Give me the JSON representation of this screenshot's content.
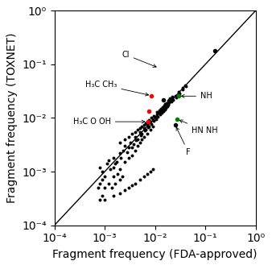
{
  "chart_data": {
    "type": "scatter",
    "log": true,
    "xlabel": "Fragment frequency (FDA-approved)",
    "ylabel": "Fragment frequency (TOXNET)",
    "xlim": [
      0.0001,
      1.0
    ],
    "ylim": [
      0.0001,
      1.0
    ],
    "xticks": [
      {
        "value": 0.0001,
        "label": "10⁻⁴"
      },
      {
        "value": 0.001,
        "label": "10⁻³"
      },
      {
        "value": 0.01,
        "label": "10⁻²"
      },
      {
        "value": 0.1,
        "label": "10⁻¹"
      },
      {
        "value": 1.0,
        "label": "10⁰"
      }
    ],
    "yticks": [
      {
        "value": 0.0001,
        "label": "10⁻⁴"
      },
      {
        "value": 0.001,
        "label": "10⁻³"
      },
      {
        "value": 0.01,
        "label": "10⁻²"
      },
      {
        "value": 0.1,
        "label": "10⁻¹"
      },
      {
        "value": 1.0,
        "label": "10⁰"
      }
    ],
    "series": [
      {
        "type": "line",
        "color": "black",
        "points": [
          [
            0.0001,
            0.0001
          ],
          [
            1.0,
            1.0
          ]
        ]
      },
      {
        "type": "scatter",
        "color": "black",
        "points": [
          [
            0.00075,
            0.0005
          ],
          [
            0.0008,
            0.0006
          ],
          [
            0.0009,
            0.0007
          ],
          [
            0.001,
            0.0008
          ],
          [
            0.0008,
            0.0012
          ],
          [
            0.0009,
            0.001
          ],
          [
            0.0011,
            0.0014
          ],
          [
            0.0012,
            0.0016
          ],
          [
            0.0013,
            0.0011
          ],
          [
            0.0015,
            0.0018
          ],
          [
            0.0015,
            0.0012
          ],
          [
            0.0016,
            0.0014
          ],
          [
            0.0017,
            0.0015
          ],
          [
            0.002,
            0.0022
          ],
          [
            0.0021,
            0.0018
          ],
          [
            0.0023,
            0.0025
          ],
          [
            0.0025,
            0.003
          ],
          [
            0.0028,
            0.0023
          ],
          [
            0.003,
            0.0028
          ],
          [
            0.0032,
            0.0035
          ],
          [
            0.0035,
            0.0028
          ],
          [
            0.0038,
            0.0032
          ],
          [
            0.004,
            0.0045
          ],
          [
            0.0042,
            0.0038
          ],
          [
            0.0045,
            0.004
          ],
          [
            0.005,
            0.0055
          ],
          [
            0.0052,
            0.0048
          ],
          [
            0.0055,
            0.005
          ],
          [
            0.006,
            0.0065
          ],
          [
            0.0063,
            0.0058
          ],
          [
            0.0065,
            0.006
          ],
          [
            0.007,
            0.0075
          ],
          [
            0.0072,
            0.0068
          ],
          [
            0.0075,
            0.007
          ],
          [
            0.008,
            0.0085
          ],
          [
            0.0083,
            0.0078
          ],
          [
            0.009,
            0.0095
          ],
          [
            0.0093,
            0.0088
          ],
          [
            0.01,
            0.0105
          ],
          [
            0.0105,
            0.0095
          ],
          [
            0.011,
            0.0115
          ],
          [
            0.0115,
            0.0105
          ],
          [
            0.012,
            0.0125
          ],
          [
            0.0125,
            0.0115
          ],
          [
            0.013,
            0.0135
          ],
          [
            0.0135,
            0.0125
          ],
          [
            0.014,
            0.0145
          ],
          [
            0.0145,
            0.0135
          ],
          [
            0.015,
            0.0155
          ],
          [
            0.0155,
            0.0145
          ],
          [
            0.016,
            0.0165
          ],
          [
            0.0165,
            0.0155
          ],
          [
            0.017,
            0.0175
          ],
          [
            0.0175,
            0.0165
          ],
          [
            0.018,
            0.0185
          ],
          [
            0.0185,
            0.0175
          ],
          [
            0.019,
            0.0195
          ],
          [
            0.02,
            0.0205
          ],
          [
            0.021,
            0.02
          ],
          [
            0.022,
            0.023
          ],
          [
            0.023,
            0.022
          ],
          [
            0.025,
            0.026
          ],
          [
            0.026,
            0.024
          ],
          [
            0.03,
            0.031
          ],
          [
            0.031,
            0.029
          ],
          [
            0.035,
            0.036
          ],
          [
            0.036,
            0.034
          ],
          [
            0.04,
            0.041
          ],
          [
            0.041,
            0.039
          ],
          [
            0.0015,
            0.0008
          ],
          [
            0.0018,
            0.0009
          ],
          [
            0.002,
            0.0011
          ],
          [
            0.0025,
            0.0015
          ],
          [
            0.003,
            0.0018
          ],
          [
            0.0035,
            0.002
          ],
          [
            0.004,
            0.0025
          ],
          [
            0.0045,
            0.003
          ],
          [
            0.005,
            0.0035
          ],
          [
            0.0055,
            0.004
          ],
          [
            0.006,
            0.0045
          ],
          [
            0.007,
            0.005
          ],
          [
            0.008,
            0.006
          ],
          [
            0.009,
            0.007
          ],
          [
            0.001,
            0.0005
          ],
          [
            0.0012,
            0.0006
          ],
          [
            0.0014,
            0.0005
          ],
          [
            0.0016,
            0.0006
          ],
          [
            0.002,
            0.0007
          ],
          [
            0.0022,
            0.0008
          ],
          [
            0.0008,
            0.0003
          ],
          [
            0.0009,
            0.00035
          ],
          [
            0.001,
            0.0003
          ],
          [
            0.0015,
            0.00035
          ],
          [
            0.002,
            0.0004
          ],
          [
            0.0025,
            0.00045
          ],
          [
            0.003,
            0.0005
          ],
          [
            0.0035,
            0.00055
          ],
          [
            0.004,
            0.0006
          ],
          [
            0.005,
            0.0007
          ],
          [
            0.006,
            0.0008
          ],
          [
            0.007,
            0.0009
          ],
          [
            0.008,
            0.001
          ],
          [
            0.009,
            0.0011
          ],
          [
            0.002,
            0.0035
          ],
          [
            0.0025,
            0.004
          ],
          [
            0.003,
            0.0045
          ],
          [
            0.0035,
            0.005
          ],
          [
            0.004,
            0.0055
          ],
          [
            0.0045,
            0.006
          ],
          [
            0.005,
            0.0065
          ],
          [
            0.0055,
            0.007
          ],
          [
            0.006,
            0.0075
          ],
          [
            0.0065,
            0.008
          ],
          [
            0.007,
            0.0085
          ],
          [
            0.0075,
            0.009
          ],
          [
            0.0085,
            0.01
          ],
          [
            0.0095,
            0.011
          ],
          [
            0.011,
            0.013
          ],
          [
            0.012,
            0.014
          ],
          [
            0.013,
            0.015
          ],
          [
            0.014,
            0.016
          ],
          [
            0.015,
            0.017
          ],
          [
            0.016,
            0.018
          ],
          [
            0.017,
            0.019
          ],
          [
            0.018,
            0.021
          ],
          [
            0.019,
            0.022
          ],
          [
            0.02,
            0.023
          ],
          [
            0.022,
            0.025
          ]
        ]
      },
      {
        "type": "scatter",
        "color": "red",
        "points": [
          [
            0.0075,
            0.0135
          ],
          [
            0.0085,
            0.026
          ],
          [
            0.0072,
            0.0085
          ]
        ]
      },
      {
        "type": "scatter",
        "color": "green",
        "points": [
          [
            0.029,
            0.0255
          ],
          [
            0.027,
            0.0095
          ]
        ]
      },
      {
        "type": "scatter",
        "color": "black",
        "points": [
          [
            0.0145,
            0.022
          ],
          [
            0.0145,
            0.0145
          ],
          [
            0.155,
            0.18
          ],
          [
            0.025,
            0.0075
          ]
        ]
      }
    ],
    "annotations": [
      {
        "text": "Cl",
        "x": 0.012,
        "y": 0.085
      },
      {
        "text": "H₃C CH₃",
        "x": 0.0085,
        "y": 0.026
      },
      {
        "text": "H₃C O OH",
        "x": 0.0072,
        "y": 0.0085
      },
      {
        "text": "NH",
        "x": 0.029,
        "y": 0.0255
      },
      {
        "text": "HN NH",
        "x": 0.027,
        "y": 0.0095
      },
      {
        "text": "F",
        "x": 0.025,
        "y": 0.0075
      }
    ]
  }
}
